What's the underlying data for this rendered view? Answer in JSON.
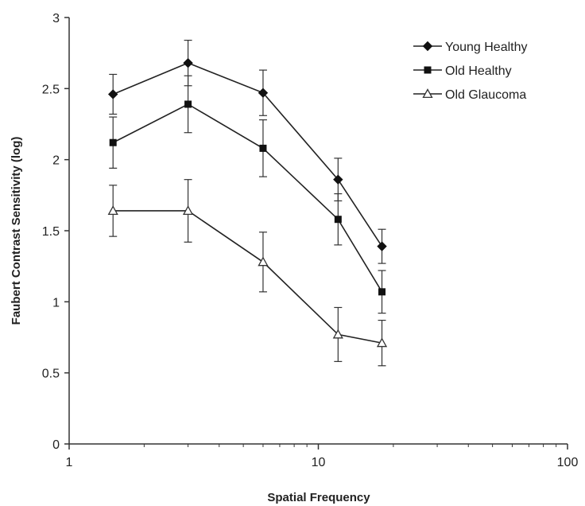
{
  "chart_data": {
    "type": "line",
    "xlabel": "Spatial Frequency",
    "ylabel": "Faubert Contrast Sensitivity (log)",
    "x_scale": "log",
    "xlim": [
      1,
      100
    ],
    "ylim": [
      0,
      3
    ],
    "x_ticks": [
      "1",
      "10",
      "100"
    ],
    "y_ticks": [
      "0",
      "0.5",
      "1",
      "1.5",
      "2",
      "2.5",
      "3"
    ],
    "x": [
      1.5,
      3,
      6,
      12,
      18
    ],
    "grid": false,
    "legend_position": "top-right",
    "series": [
      {
        "name": "Young Healthy",
        "marker": "diamond",
        "values": [
          2.46,
          2.68,
          2.47,
          1.86,
          1.39
        ],
        "error": [
          0.14,
          0.16,
          0.16,
          0.15,
          0.12
        ]
      },
      {
        "name": "Old Healthy",
        "marker": "square",
        "values": [
          2.12,
          2.39,
          2.08,
          1.58,
          1.07
        ],
        "error": [
          0.18,
          0.2,
          0.2,
          0.18,
          0.15
        ]
      },
      {
        "name": "Old Glaucoma",
        "marker": "triangle-open",
        "values": [
          1.64,
          1.64,
          1.28,
          0.77,
          0.71
        ],
        "error": [
          0.18,
          0.22,
          0.21,
          0.19,
          0.16
        ]
      }
    ]
  }
}
